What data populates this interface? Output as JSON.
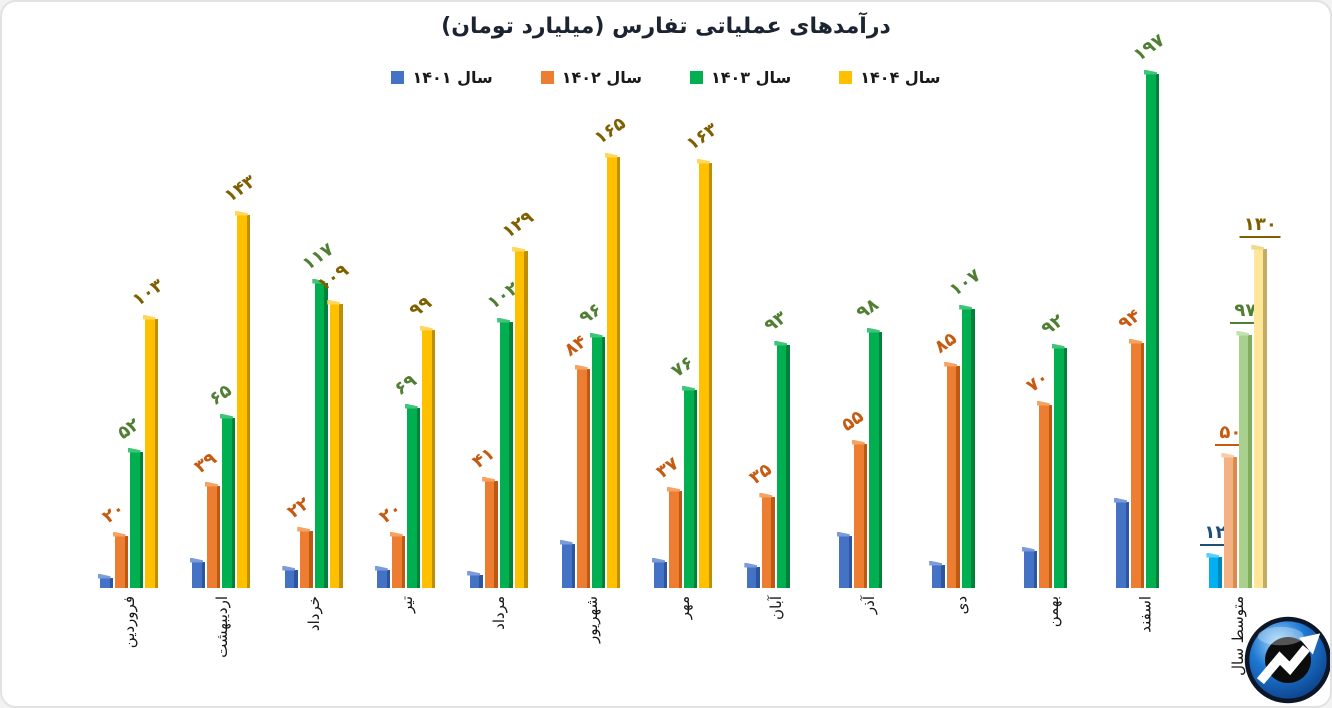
{
  "title": "درآمدهای عملیاتی تفارس (میلیارد تومان)",
  "legend": [
    {
      "label": "سال ۱۴۰۱",
      "color": "#4472C4"
    },
    {
      "label": "سال ۱۴۰۲",
      "color": "#ED7D31"
    },
    {
      "label": "سال ۱۴۰۳",
      "color": "#00B050"
    },
    {
      "label": "سال ۱۴۰۴",
      "color": "#FFC000"
    }
  ],
  "chart_data": {
    "type": "bar",
    "title": "درآمدهای عملیاتی تفارس (میلیارد تومان)",
    "unit": "میلیارد تومان",
    "ylim": [
      0,
      200
    ],
    "grid": false,
    "legend_position": "top",
    "categories": [
      "فروردین",
      "اردیبهشت",
      "خرداد",
      "تیر",
      "مرداد",
      "شهریور",
      "مهر",
      "آبان",
      "آذر",
      "دی",
      "بهمن",
      "اسفند",
      "متوسط سال"
    ],
    "last_category_is_average": true,
    "series": [
      {
        "name": "سال ۱۴۰۱",
        "face": "#4472C4",
        "side": "#2E569E",
        "top": "#7B9BDA",
        "label_color": "#1F4E79",
        "avg_face": "#00B0F0",
        "avg_side": "#0088BC",
        "avg_top": "#5ECFF7",
        "values": [
          4,
          10,
          7,
          7,
          5,
          17,
          10,
          8,
          20,
          9,
          14,
          33,
          12
        ],
        "labels": [
          null,
          null,
          null,
          null,
          null,
          null,
          null,
          null,
          null,
          null,
          null,
          null,
          "۱۲"
        ]
      },
      {
        "name": "سال ۱۴۰۲",
        "face": "#ED7D31",
        "side": "#BC5A14",
        "top": "#F5A263",
        "label_color": "#C55A11",
        "avg_face": "#F4B183",
        "avg_side": "#D98C4E",
        "avg_top": "#F8CDAA",
        "values": [
          20,
          39,
          22,
          20,
          41,
          84,
          37,
          35,
          55,
          85,
          70,
          94,
          50
        ],
        "labels": [
          "۲۰",
          "۳۹",
          "۲۲",
          "۲۰",
          "۴۱",
          "۸۴",
          "۳۷",
          "۳۵",
          "۵۵",
          "۸۵",
          "۷۰",
          "۹۴",
          "۵۰"
        ]
      },
      {
        "name": "سال ۱۴۰۳",
        "face": "#00B050",
        "side": "#00803A",
        "top": "#3FC578",
        "label_color": "#507E32",
        "avg_face": "#A9D18E",
        "avg_side": "#7FAE5C",
        "avg_top": "#C3E1AD",
        "values": [
          52,
          65,
          117,
          69,
          102,
          96,
          76,
          93,
          98,
          107,
          92,
          197,
          97
        ],
        "labels": [
          "۵۲",
          "۶۵",
          "۱۱۷",
          "۶۹",
          "۱۰۲",
          "۹۶",
          "۷۶",
          "۹۳",
          "۹۸",
          "۱۰۷",
          "۹۲",
          "۱۹۷",
          "۹۷"
        ]
      },
      {
        "name": "سال ۱۴۰۴",
        "face": "#FFC000",
        "side": "#BE8F00",
        "top": "#FFD75E",
        "label_color": "#7F6000",
        "avg_face": "#FFE699",
        "avg_side": "#C4AC62",
        "avg_top": "#EFD98E",
        "values": [
          103,
          143,
          109,
          99,
          129,
          165,
          163,
          null,
          null,
          null,
          null,
          null,
          130
        ],
        "labels": [
          "۱۰۳",
          "۱۴۳",
          "۱۰۹",
          "۹۹",
          "۱۲۹",
          "۱۶۵",
          "۱۶۳",
          null,
          null,
          null,
          null,
          null,
          "۱۳۰"
        ]
      }
    ]
  },
  "logo_colors": {
    "ring": "#0d1626",
    "sphere_light": "#a6dbff",
    "sphere_mid": "#1e78d2",
    "sphere_dark": "#0b3e86",
    "disc": "#0c0c0c",
    "arrow": "#ffffff"
  }
}
